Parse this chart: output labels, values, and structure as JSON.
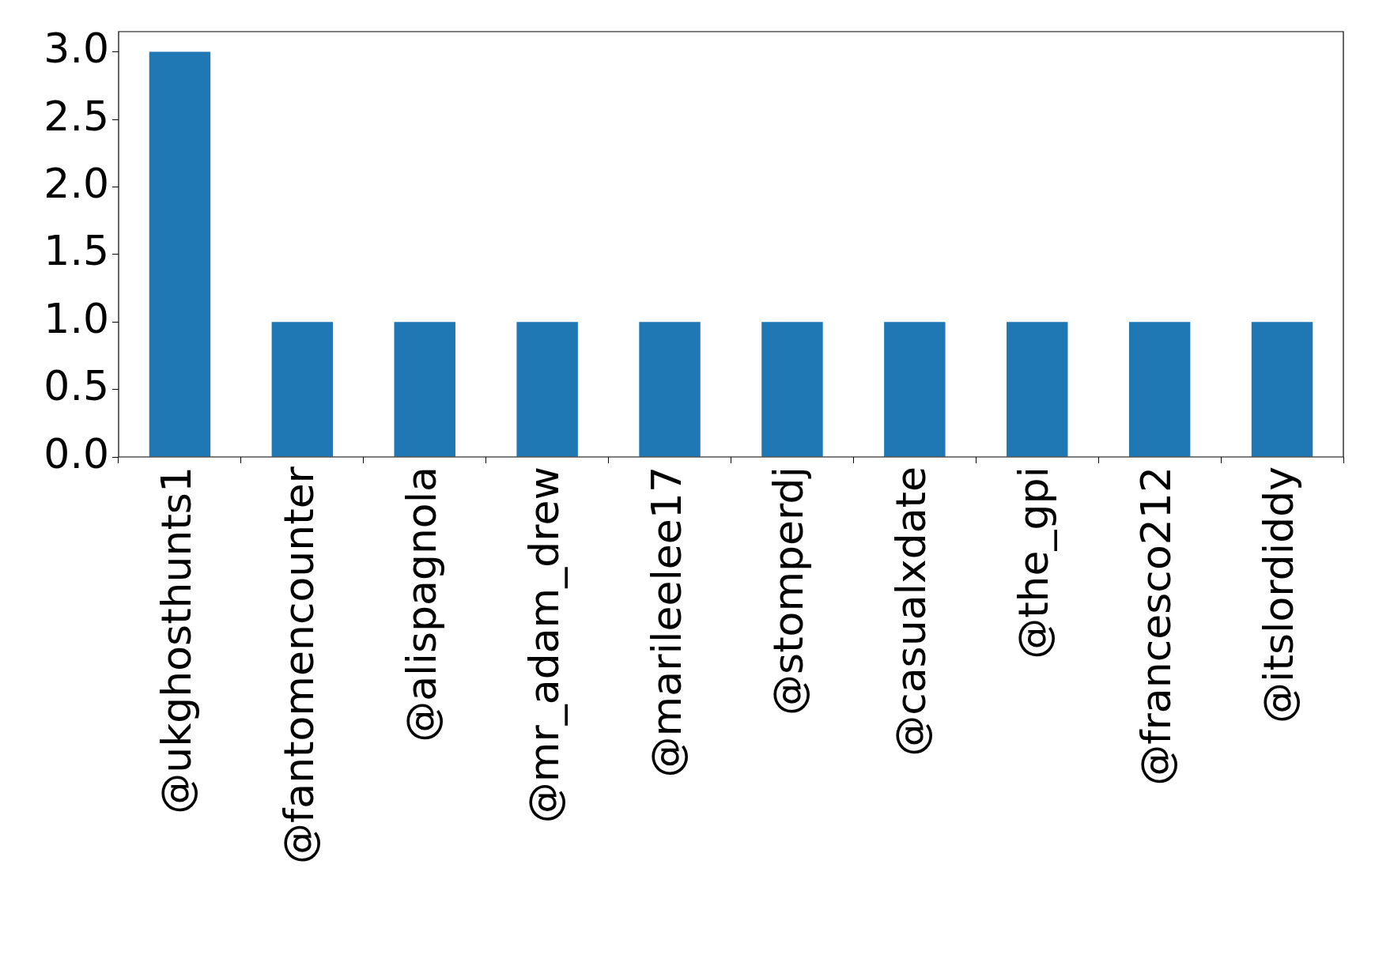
{
  "chart_data": {
    "type": "bar",
    "categories": [
      "@ukghosthunts1",
      "@fantomencounter",
      "@alispagnola",
      "@mr_adam_drew",
      "@marileelee17",
      "@stomperdj",
      "@casualxdate",
      "@the_gpi",
      "@francesco212",
      "@itslordiddy"
    ],
    "values": [
      3,
      1,
      1,
      1,
      1,
      1,
      1,
      1,
      1,
      1
    ],
    "color": "#1f77b4",
    "ylim": [
      0,
      3.15
    ],
    "yticks": [
      {
        "value": 0,
        "label": "0.0"
      },
      {
        "value": 0.5,
        "label": "0.5"
      },
      {
        "value": 1,
        "label": "1.0"
      },
      {
        "value": 1.5,
        "label": "1.5"
      },
      {
        "value": 2,
        "label": "2.0"
      },
      {
        "value": 2.5,
        "label": "2.5"
      },
      {
        "value": 3,
        "label": "3.0"
      }
    ],
    "grid": false,
    "legend": false
  }
}
